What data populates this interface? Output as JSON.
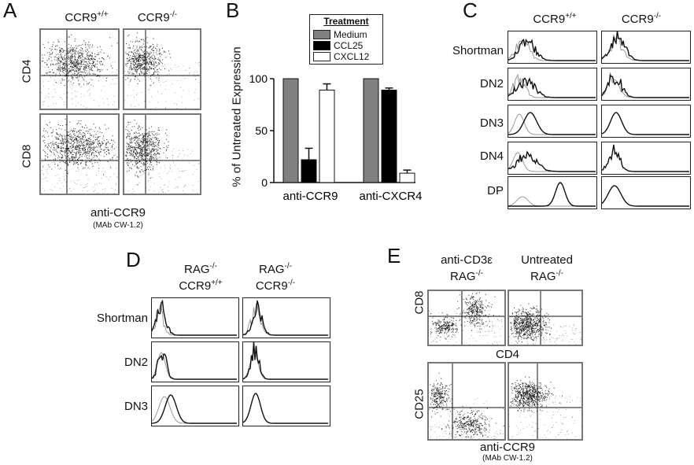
{
  "panel_a": {
    "letter": "A",
    "col_headers": [
      {
        "base": "CCR9",
        "sup": "+/+"
      },
      {
        "base": "CCR9",
        "sup": "-/-"
      }
    ],
    "row_labels": [
      "CD4",
      "CD8"
    ],
    "x_label": "anti-CCR9",
    "x_sublabel": "(MAb CW-1.2)"
  },
  "panel_b": {
    "letter": "B",
    "legend_title": "Treatment",
    "y_label": "% of Untreated Expression",
    "y_ticks": [
      "0",
      "50",
      "100"
    ]
  },
  "chart_data": {
    "type": "bar",
    "categories": [
      "anti-CCR9",
      "anti-CXCR4"
    ],
    "series": [
      {
        "name": "Medium",
        "values": [
          100,
          100
        ],
        "errors": [
          0,
          0
        ],
        "color": "#808080"
      },
      {
        "name": "CCL25",
        "values": [
          22,
          89
        ],
        "errors": [
          11,
          2
        ],
        "color": "#000000"
      },
      {
        "name": "CXCL12",
        "values": [
          89,
          9
        ],
        "errors": [
          6,
          3
        ],
        "color": "#ffffff"
      }
    ],
    "ylim": [
      0,
      100
    ],
    "ylabel": "% of Untreated Expression",
    "legend": "top"
  },
  "panel_c": {
    "letter": "C",
    "col_headers": [
      {
        "base": "CCR9",
        "sup": "+/+"
      },
      {
        "base": "CCR9",
        "sup": "-/-"
      }
    ],
    "row_labels": [
      "Shortman",
      "DN2",
      "DN3",
      "DN4",
      "DP"
    ]
  },
  "panel_d": {
    "letter": "D",
    "col_headers": [
      {
        "l1": "RAG",
        "l1sup": "-/-",
        "l2": "CCR9",
        "l2sup": "+/+"
      },
      {
        "l1": "RAG",
        "l1sup": "-/-",
        "l2": "CCR9",
        "l2sup": "-/-"
      }
    ],
    "row_labels": [
      "Shortman",
      "DN2",
      "DN3"
    ]
  },
  "panel_e": {
    "letter": "E",
    "col_headers": [
      {
        "l1": "anti-CD3ε",
        "l2": "RAG",
        "l2sup": "-/-"
      },
      {
        "l1": "Untreated",
        "l2": "RAG",
        "l2sup": "-/-"
      }
    ],
    "row_labels": [
      "CD8",
      "CD25"
    ],
    "x_label_top": "CD4",
    "x_label": "anti-CCR9",
    "x_sublabel": "(MAb CW-1.2)"
  }
}
